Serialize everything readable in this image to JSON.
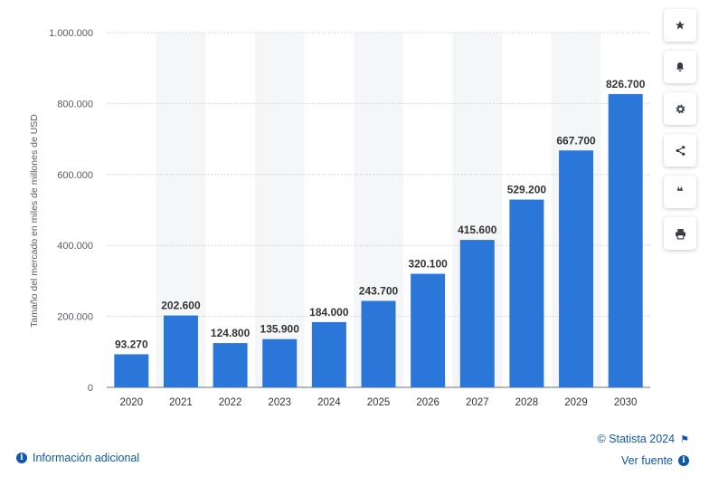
{
  "chart_data": {
    "type": "bar",
    "categories": [
      "2020",
      "2021",
      "2022",
      "2023",
      "2024",
      "2025",
      "2026",
      "2027",
      "2028",
      "2029",
      "2030"
    ],
    "values": [
      93270,
      202600,
      124800,
      135900,
      184000,
      243700,
      320100,
      415600,
      529200,
      667700,
      826700
    ],
    "value_labels": [
      "93.270",
      "202.600",
      "124.800",
      "135.900",
      "184.000",
      "243.700",
      "320.100",
      "415.600",
      "529.200",
      "667.700",
      "826.700"
    ],
    "ylabel": "Tamaño del mercado en miles de millones de USD",
    "ylim": [
      0,
      1000000
    ],
    "y_ticks": [
      0,
      200000,
      400000,
      600000,
      800000,
      1000000
    ],
    "y_tick_labels": [
      "0",
      "200.000",
      "400.000",
      "600.000",
      "800.000",
      "1.000.000"
    ],
    "grid": true,
    "bar_color": "#2a77d9"
  },
  "toolbar": [
    {
      "name": "star-icon",
      "glyph": "★"
    },
    {
      "name": "bell-icon",
      "glyph": "bell"
    },
    {
      "name": "gear-icon",
      "glyph": "gear"
    },
    {
      "name": "share-icon",
      "glyph": "share"
    },
    {
      "name": "quote-icon",
      "glyph": "❝"
    },
    {
      "name": "print-icon",
      "glyph": "print"
    }
  ],
  "footer": {
    "info_label": "Información adicional",
    "credits": "© Statista 2024",
    "source_label": "Ver fuente",
    "info_glyph": "i"
  },
  "colors": {
    "bar": "#2a77d9",
    "link": "#0f58a8",
    "band": "#f5f6f8"
  }
}
